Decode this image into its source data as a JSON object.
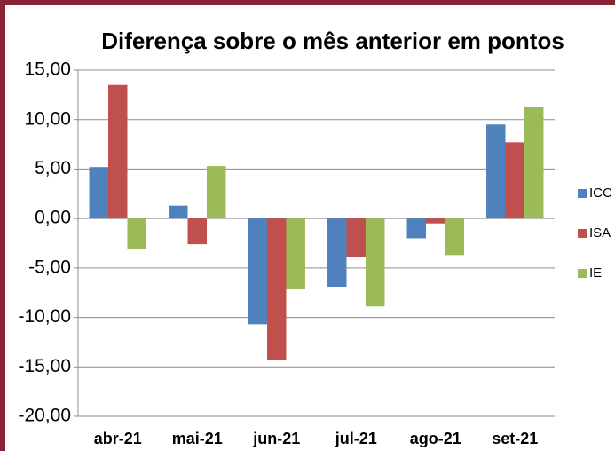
{
  "chart_data": {
    "type": "bar",
    "title": "Diferença sobre o mês anterior em pontos",
    "categories": [
      "abr-21",
      "mai-21",
      "jun-21",
      "jul-21",
      "ago-21",
      "set-21"
    ],
    "series": [
      {
        "name": "ICC",
        "color": "#4f81bd",
        "values": [
          5.2,
          1.3,
          -10.7,
          -6.9,
          -2.0,
          9.5
        ]
      },
      {
        "name": "ISA",
        "color": "#c0504d",
        "values": [
          13.5,
          -2.6,
          -14.3,
          -3.9,
          -0.5,
          7.7
        ]
      },
      {
        "name": "IE",
        "color": "#9bbb59",
        "values": [
          -3.1,
          5.3,
          -7.1,
          -8.9,
          -3.7,
          11.3
        ]
      }
    ],
    "ylim": [
      -20,
      15
    ],
    "yticks": [
      {
        "value": -20,
        "label": "-20,00"
      },
      {
        "value": -15,
        "label": "-15,00"
      },
      {
        "value": -10,
        "label": "-10,00"
      },
      {
        "value": -5,
        "label": "-5,00"
      },
      {
        "value": 0,
        "label": "0,00"
      },
      {
        "value": 5,
        "label": "5,00"
      },
      {
        "value": 10,
        "label": "10,00"
      },
      {
        "value": 15,
        "label": "15,00"
      }
    ],
    "grid": true,
    "legend": "right"
  }
}
